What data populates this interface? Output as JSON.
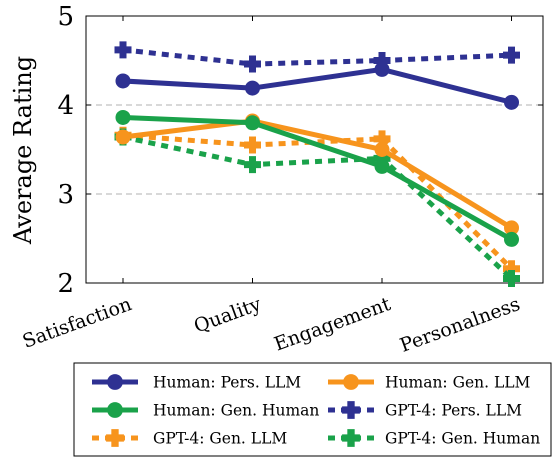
{
  "chart_data": {
    "type": "line",
    "title": "",
    "xlabel": "",
    "ylabel": "Average Rating",
    "categories": [
      "Satisfaction",
      "Quality",
      "Engagement",
      "Personalness"
    ],
    "ylim": [
      2,
      5
    ],
    "yticks": [
      2,
      3,
      4,
      5
    ],
    "grid": "horizontal dashed",
    "legend_position": "bottom",
    "series": [
      {
        "name": "Human: Pers. LLM",
        "values": [
          4.27,
          4.19,
          4.4,
          4.03
        ],
        "color": "#2e3192",
        "style": "solid",
        "marker": "circle"
      },
      {
        "name": "Human: Gen. LLM",
        "values": [
          3.64,
          3.82,
          3.5,
          2.62
        ],
        "color": "#f7941d",
        "style": "solid",
        "marker": "circle"
      },
      {
        "name": "Human: Gen. Human",
        "values": [
          3.86,
          3.8,
          3.31,
          2.49
        ],
        "color": "#1aa24a",
        "style": "solid",
        "marker": "circle"
      },
      {
        "name": "GPT-4: Pers. LLM",
        "values": [
          4.62,
          4.46,
          4.5,
          4.56
        ],
        "color": "#2e3192",
        "style": "dashed",
        "marker": "plus"
      },
      {
        "name": "GPT-4: Gen. LLM",
        "values": [
          3.66,
          3.55,
          3.62,
          2.16
        ],
        "color": "#f7941d",
        "style": "dashed",
        "marker": "plus"
      },
      {
        "name": "GPT-4: Gen. Human",
        "values": [
          3.64,
          3.33,
          3.4,
          2.05
        ],
        "color": "#1aa24a",
        "style": "dashed",
        "marker": "plus"
      }
    ]
  }
}
